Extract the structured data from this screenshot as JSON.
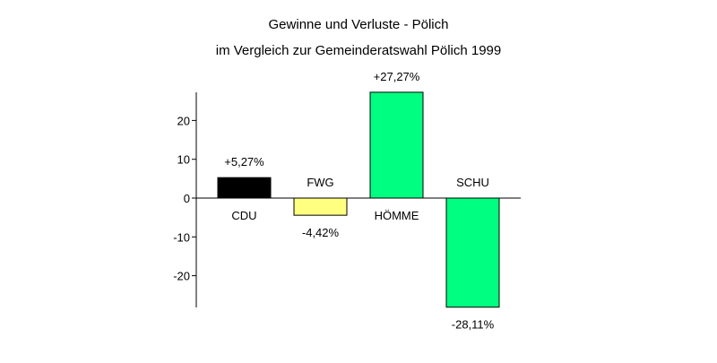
{
  "chart_data": {
    "type": "bar",
    "title": "Gewinne und Verluste - Pölich",
    "subtitle": "im Vergleich zur Gemeinderatswahl Pölich 1999",
    "xlabel": "",
    "ylabel": "",
    "ylim": [
      -28,
      27.5
    ],
    "yticks": [
      -20,
      -10,
      0,
      10,
      20
    ],
    "ytick_labels": [
      "-20",
      "-10",
      "0",
      "10",
      "20"
    ],
    "grid": false,
    "legend": "none",
    "categories": [
      "CDU",
      "FWG",
      "HÖMME",
      "SCHU"
    ],
    "values": [
      5.27,
      -4.42,
      27.27,
      -28.11
    ],
    "data_labels": [
      "+5,27%",
      "-4,42%",
      "+27,27%",
      "-28,11%"
    ],
    "colors": [
      "#000000",
      "#ffff80",
      "#00ff80",
      "#00ff80"
    ]
  }
}
